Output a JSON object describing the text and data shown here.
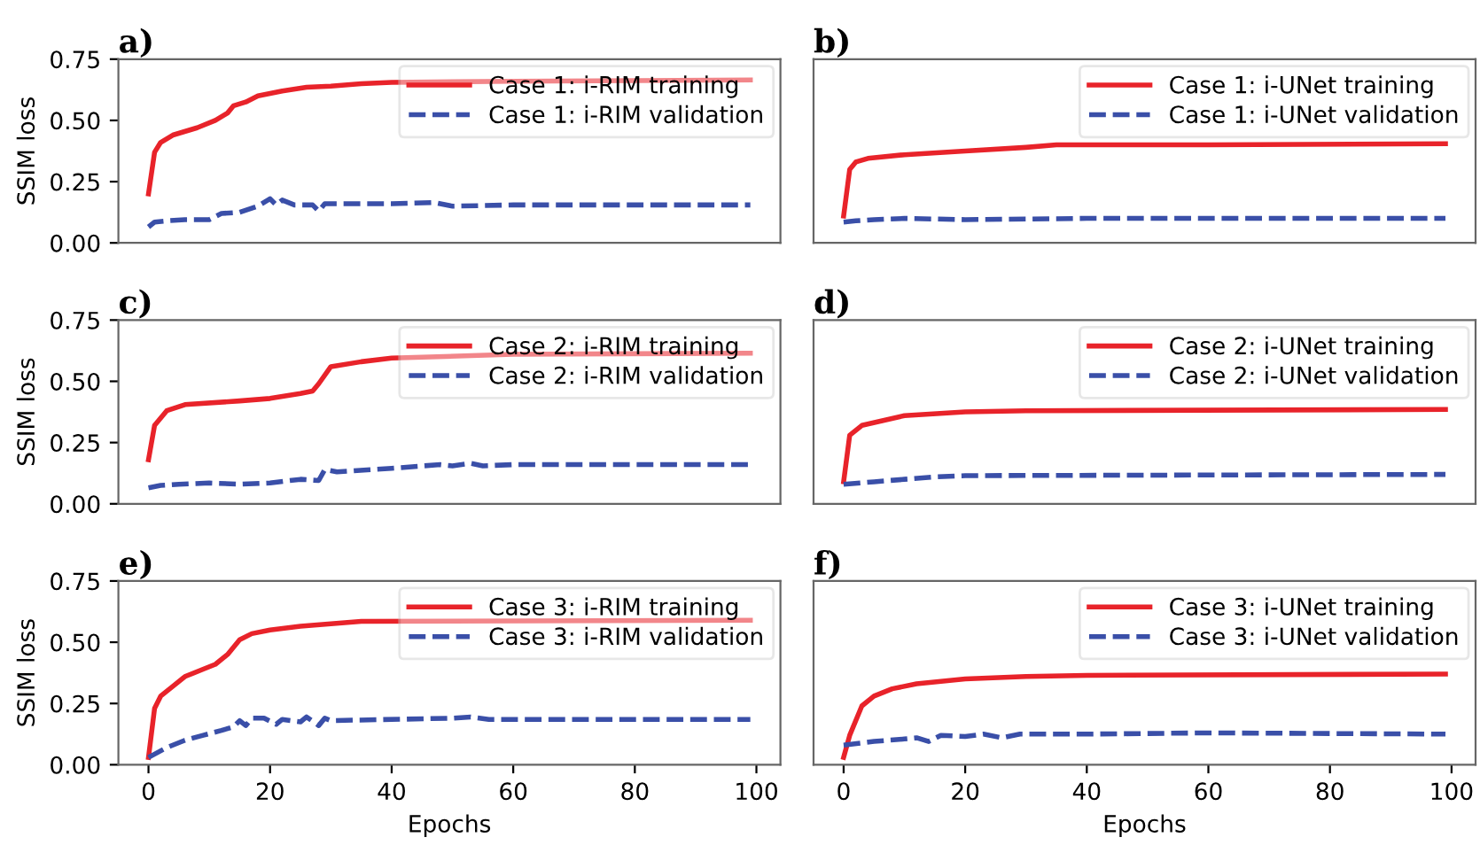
{
  "chart_data": [
    {
      "type": "line",
      "title": "a)",
      "ylabel": "SSIM loss",
      "xlim": [
        -4.95,
        103.95
      ],
      "ylim": [
        0,
        0.75
      ],
      "yticks": [
        {
          "value": 0,
          "label": "0.00"
        },
        {
          "value": 0.25,
          "label": "0.25"
        },
        {
          "value": 0.5,
          "label": "0.50"
        },
        {
          "value": 0.75,
          "label": "0.75"
        }
      ],
      "tick_labels": "y",
      "legend": "top right",
      "grid": false,
      "series": [
        {
          "name": "Case 1: i-RIM training",
          "color": "#e8232a",
          "line_style": "solid",
          "x": [
            0,
            1,
            2,
            4,
            8,
            11,
            13,
            14,
            16,
            18,
            22,
            26,
            30,
            35,
            40,
            60,
            99
          ],
          "values": [
            0.2,
            0.37,
            0.41,
            0.44,
            0.47,
            0.5,
            0.53,
            0.56,
            0.575,
            0.6,
            0.62,
            0.635,
            0.64,
            0.65,
            0.655,
            0.66,
            0.665
          ]
        },
        {
          "name": "Case 1: i-RIM validation",
          "color": "#3a4fa8",
          "line_style": "dashed",
          "x": [
            0,
            1,
            3,
            6,
            10,
            12,
            15,
            18,
            20,
            21,
            22,
            24,
            27,
            28,
            29,
            40,
            47,
            50,
            60,
            80,
            99
          ],
          "values": [
            0.065,
            0.085,
            0.09,
            0.095,
            0.095,
            0.12,
            0.125,
            0.15,
            0.18,
            0.155,
            0.175,
            0.155,
            0.155,
            0.13,
            0.16,
            0.16,
            0.165,
            0.15,
            0.155,
            0.155,
            0.155
          ]
        }
      ]
    },
    {
      "type": "line",
      "title": "b)",
      "xlim": [
        -4.95,
        103.95
      ],
      "ylim": [
        0,
        0.75
      ],
      "tick_labels": false,
      "legend": "top right",
      "grid": false,
      "series": [
        {
          "name": "Case 1: i-UNet training",
          "color": "#e8232a",
          "line_style": "solid",
          "x": [
            0,
            1,
            2,
            4,
            10,
            20,
            30,
            35,
            60,
            99
          ],
          "values": [
            0.11,
            0.3,
            0.33,
            0.345,
            0.36,
            0.375,
            0.39,
            0.4,
            0.4,
            0.405
          ]
        },
        {
          "name": "Case 1: i-UNet validation",
          "color": "#3a4fa8",
          "line_style": "dashed",
          "x": [
            0,
            2,
            5,
            10,
            20,
            40,
            60,
            99
          ],
          "values": [
            0.085,
            0.09,
            0.095,
            0.1,
            0.095,
            0.1,
            0.1,
            0.1
          ]
        }
      ]
    },
    {
      "type": "line",
      "title": "c)",
      "ylabel": "SSIM loss",
      "xlim": [
        -4.95,
        103.95
      ],
      "ylim": [
        0,
        0.75
      ],
      "yticks": [
        {
          "value": 0,
          "label": "0.00"
        },
        {
          "value": 0.25,
          "label": "0.25"
        },
        {
          "value": 0.5,
          "label": "0.50"
        },
        {
          "value": 0.75,
          "label": "0.75"
        }
      ],
      "tick_labels": "y",
      "legend": "top right",
      "grid": false,
      "series": [
        {
          "name": "Case 2: i-RIM training",
          "color": "#e8232a",
          "line_style": "solid",
          "x": [
            0,
            1,
            3,
            6,
            15,
            20,
            25,
            27,
            28,
            30,
            35,
            40,
            60,
            99
          ],
          "values": [
            0.18,
            0.32,
            0.38,
            0.405,
            0.42,
            0.43,
            0.45,
            0.46,
            0.49,
            0.56,
            0.58,
            0.595,
            0.61,
            0.615
          ]
        },
        {
          "name": "Case 2: i-RIM validation",
          "color": "#3a4fa8",
          "line_style": "dashed",
          "x": [
            0,
            2,
            5,
            10,
            15,
            20,
            25,
            28,
            29,
            31,
            40,
            48,
            50,
            53,
            55,
            60,
            99
          ],
          "values": [
            0.065,
            0.075,
            0.08,
            0.085,
            0.08,
            0.085,
            0.1,
            0.095,
            0.14,
            0.13,
            0.145,
            0.16,
            0.155,
            0.165,
            0.155,
            0.16,
            0.16
          ]
        }
      ]
    },
    {
      "type": "line",
      "title": "d)",
      "xlim": [
        -4.95,
        103.95
      ],
      "ylim": [
        0,
        0.75
      ],
      "tick_labels": false,
      "legend": "top right",
      "grid": false,
      "series": [
        {
          "name": "Case 2: i-UNet training",
          "color": "#e8232a",
          "line_style": "solid",
          "x": [
            0,
            1,
            3,
            10,
            20,
            30,
            99
          ],
          "values": [
            0.09,
            0.28,
            0.32,
            0.36,
            0.375,
            0.38,
            0.385
          ]
        },
        {
          "name": "Case 2: i-UNet validation",
          "color": "#3a4fa8",
          "line_style": "dashed",
          "x": [
            0,
            5,
            10,
            15,
            20,
            99
          ],
          "values": [
            0.08,
            0.09,
            0.1,
            0.11,
            0.115,
            0.12
          ]
        }
      ]
    },
    {
      "type": "line",
      "title": "e)",
      "ylabel": "SSIM loss",
      "xlabel": "Epochs",
      "xlim": [
        -4.95,
        103.95
      ],
      "ylim": [
        0,
        0.75
      ],
      "xticks": [
        0,
        20,
        40,
        60,
        80,
        100
      ],
      "yticks": [
        {
          "value": 0,
          "label": "0.00"
        },
        {
          "value": 0.25,
          "label": "0.25"
        },
        {
          "value": 0.5,
          "label": "0.50"
        },
        {
          "value": 0.75,
          "label": "0.75"
        }
      ],
      "legend": "top right",
      "grid": false,
      "series": [
        {
          "name": "Case 3: i-RIM training",
          "color": "#e8232a",
          "line_style": "solid",
          "x": [
            0,
            1,
            2,
            4,
            6,
            9,
            11,
            13,
            15,
            17,
            20,
            25,
            30,
            35,
            99
          ],
          "values": [
            0.03,
            0.23,
            0.28,
            0.32,
            0.36,
            0.39,
            0.41,
            0.45,
            0.51,
            0.535,
            0.55,
            0.565,
            0.575,
            0.585,
            0.59
          ]
        },
        {
          "name": "Case 3: i-RIM validation",
          "color": "#3a4fa8",
          "line_style": "dashed",
          "x": [
            0,
            3,
            6,
            9,
            12,
            14,
            15,
            16,
            17,
            19,
            21,
            22,
            25,
            26,
            28,
            29,
            30,
            50,
            53,
            56,
            70,
            99
          ],
          "values": [
            0.03,
            0.07,
            0.1,
            0.12,
            0.14,
            0.155,
            0.18,
            0.16,
            0.19,
            0.19,
            0.165,
            0.185,
            0.175,
            0.195,
            0.16,
            0.19,
            0.18,
            0.19,
            0.195,
            0.185,
            0.185,
            0.185
          ]
        }
      ]
    },
    {
      "type": "line",
      "title": "f)",
      "xlabel": "Epochs",
      "xlim": [
        -4.95,
        103.95
      ],
      "ylim": [
        0,
        0.75
      ],
      "xticks": [
        0,
        20,
        40,
        60,
        80,
        100
      ],
      "tick_labels": "x",
      "legend": "top right",
      "grid": false,
      "series": [
        {
          "name": "Case 3: i-UNet training",
          "color": "#e8232a",
          "line_style": "solid",
          "x": [
            0,
            1,
            3,
            5,
            8,
            12,
            20,
            30,
            40,
            99
          ],
          "values": [
            0.03,
            0.12,
            0.24,
            0.28,
            0.31,
            0.33,
            0.35,
            0.36,
            0.365,
            0.37
          ]
        },
        {
          "name": "Case 3: i-UNet validation",
          "color": "#3a4fa8",
          "line_style": "dashed",
          "x": [
            0,
            5,
            10,
            12,
            14,
            16,
            20,
            23,
            26,
            29,
            40,
            60,
            99
          ],
          "values": [
            0.08,
            0.095,
            0.105,
            0.11,
            0.095,
            0.12,
            0.115,
            0.125,
            0.11,
            0.125,
            0.125,
            0.13,
            0.125
          ]
        }
      ]
    }
  ]
}
